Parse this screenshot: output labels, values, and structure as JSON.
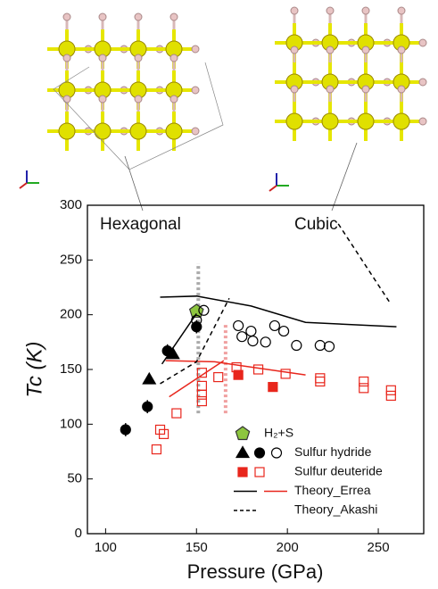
{
  "chart_data": {
    "type": "scatter",
    "x_label": "Pressure (GPa)",
    "y_label": "Tc (K)",
    "xlim": [
      90,
      275
    ],
    "ylim": [
      0,
      300
    ],
    "xticks": [
      100,
      150,
      200,
      250
    ],
    "yticks": [
      0,
      50,
      100,
      150,
      200,
      250,
      300
    ],
    "annotations": [
      "Hexagonal",
      "Cubic"
    ],
    "vlines": [
      {
        "x": 151,
        "y": [
          110,
          247
        ],
        "color": "#aaaaaa"
      },
      {
        "x": 166,
        "y": [
          110,
          193
        ],
        "color": "#f0a0a0"
      }
    ],
    "series": [
      {
        "name": "H₂+S",
        "marker": "pentagon",
        "filled": true,
        "color": "#8dc63f",
        "x": [
          150
        ],
        "y": [
          203
        ]
      },
      {
        "name": "Sulfur hydride",
        "marker": "triangle",
        "filled": true,
        "color": "#000000",
        "x": [
          124,
          137
        ],
        "y": [
          141,
          164
        ]
      },
      {
        "marker": "circle",
        "filled": true,
        "color": "#000000",
        "x": [
          111,
          123,
          134,
          150
        ],
        "y": [
          95,
          116,
          167,
          189
        ],
        "errors": [
          6,
          6,
          6,
          6
        ]
      },
      {
        "marker": "circle",
        "filled": false,
        "color": "#000000",
        "x": [
          150,
          154,
          173,
          175,
          180,
          181,
          188,
          193,
          198,
          205,
          218,
          223
        ],
        "y": [
          195,
          204,
          190,
          180,
          185,
          176,
          175,
          190,
          185,
          172,
          172,
          171
        ]
      },
      {
        "name": "Sulfur deuteride",
        "marker": "square",
        "filled": true,
        "color": "#e8261c",
        "x": [
          173,
          192
        ],
        "y": [
          145,
          134
        ]
      },
      {
        "marker": "square",
        "filled": false,
        "color": "#e8261c",
        "x": [
          128,
          130,
          132,
          139,
          153,
          153,
          153,
          153,
          162,
          172,
          184,
          199,
          218,
          218,
          242,
          242,
          257,
          257
        ],
        "y": [
          77,
          95,
          91,
          110,
          147,
          135,
          127,
          121,
          143,
          152,
          150,
          146,
          142,
          139,
          139,
          133,
          131,
          126
        ]
      },
      {
        "name": "Theory_Errea",
        "marker": "line",
        "color": "#000000",
        "x": [
          130,
          150,
          180,
          210,
          260
        ],
        "y": [
          216,
          217,
          208,
          193,
          189
        ]
      },
      {
        "marker": "line",
        "color": "#000000",
        "x": [
          131,
          150
        ],
        "y": [
          155,
          201
        ]
      },
      {
        "marker": "line",
        "color": "#e8261c",
        "x": [
          133,
          160,
          210
        ],
        "y": [
          158,
          157,
          145
        ]
      },
      {
        "marker": "line",
        "color": "#e8261c",
        "x": [
          135,
          165
        ],
        "y": [
          125,
          158
        ]
      },
      {
        "name": "Theory_Akashi",
        "marker": "dashed",
        "color": "#000000",
        "x": [
          130,
          150,
          168
        ],
        "y": [
          137,
          157,
          215
        ]
      },
      {
        "marker": "dashed",
        "color": "#000000",
        "x": [
          228,
          256
        ],
        "y": [
          283,
          212
        ]
      }
    ],
    "legend": [
      {
        "label": "H₂+S",
        "symbols": [
          {
            "marker": "pentagon",
            "filled": true,
            "color": "#8dc63f"
          }
        ]
      },
      {
        "label": "Sulfur hydride",
        "symbols": [
          {
            "marker": "triangle",
            "filled": true,
            "color": "#000000"
          },
          {
            "marker": "circle",
            "filled": true,
            "color": "#000000"
          },
          {
            "marker": "circle",
            "filled": false,
            "color": "#000000"
          }
        ]
      },
      {
        "label": "Sulfur deuteride",
        "symbols": [
          {
            "marker": "square",
            "filled": true,
            "color": "#e8261c"
          },
          {
            "marker": "square",
            "filled": false,
            "color": "#e8261c"
          }
        ]
      },
      {
        "label": "Theory_Errea",
        "symbols": [
          {
            "marker": "line",
            "color": "#000000"
          },
          {
            "marker": "line",
            "color": "#e8261c"
          }
        ]
      },
      {
        "label": "Theory_Akashi",
        "symbols": [
          {
            "marker": "dashed",
            "color": "#000000"
          }
        ]
      }
    ]
  }
}
